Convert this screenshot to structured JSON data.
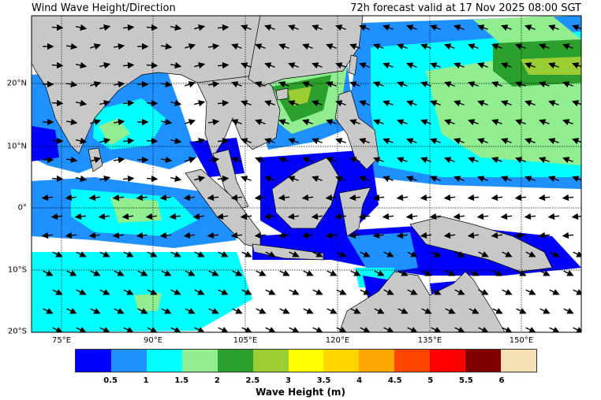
{
  "title_left": "Wind Wave Height/Direction",
  "title_right": "72h forecast valid at 17 Nov 2025 08:00 SGT",
  "map": {
    "lon_ticks": [
      "75°E",
      "90°E",
      "105°E",
      "120°E",
      "135°E",
      "150°E"
    ],
    "lat_ticks": [
      "20°N",
      "10°N",
      "0°",
      "10°S",
      "20°S"
    ],
    "land_color": "#c8c8c8",
    "ocean_color": "#ffffff",
    "gridlines": true,
    "arrow_icon": "wind-direction-arrow"
  },
  "colorbar": {
    "label": "Wave Height (m)",
    "ticks": [
      "0.5",
      "1",
      "1.5",
      "2",
      "2.5",
      "3",
      "3.5",
      "4",
      "4.5",
      "5",
      "5.5",
      "6"
    ],
    "colors": [
      "#0000ff",
      "#1e90ff",
      "#00ffff",
      "#90ee90",
      "#2ca02c",
      "#9acd32",
      "#ffff00",
      "#ffd700",
      "#ffa500",
      "#ff4500",
      "#ff0000",
      "#800000",
      "#f5deb3"
    ]
  }
}
